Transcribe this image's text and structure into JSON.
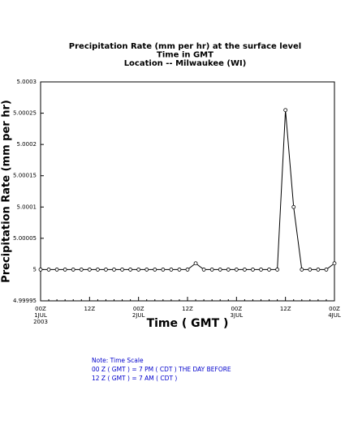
{
  "chart_data": {
    "type": "line",
    "title": [
      "Precipitation Rate (mm per hr) at the surface level",
      "Time in GMT",
      "Location -- Milwaukee (WI)"
    ],
    "x_label": "Time ( GMT )",
    "y_label": "Precipitation Rate (mm per hr)",
    "categories": [
      "00Z",
      null,
      null,
      null,
      null,
      null,
      "12Z",
      null,
      null,
      null,
      null,
      null,
      "00Z",
      null,
      null,
      null,
      null,
      null,
      "12Z",
      null,
      null,
      null,
      null,
      null,
      "00Z",
      null,
      null,
      null,
      null,
      null,
      "12Z",
      null,
      null,
      null,
      null,
      null,
      "00Z"
    ],
    "category_dates": [
      "1JUL",
      null,
      null,
      null,
      null,
      null,
      null,
      null,
      null,
      null,
      null,
      null,
      "2JUL",
      null,
      null,
      null,
      null,
      null,
      null,
      null,
      null,
      null,
      null,
      null,
      "3JUL",
      null,
      null,
      null,
      null,
      null,
      null,
      null,
      null,
      null,
      null,
      null,
      "4JUL"
    ],
    "category_years": [
      "2003",
      null,
      null,
      null,
      null,
      null,
      null,
      null,
      null,
      null,
      null,
      null,
      null,
      null,
      null,
      null,
      null,
      null,
      null,
      null,
      null,
      null,
      null,
      null,
      null,
      null,
      null,
      null,
      null,
      null,
      null,
      null,
      null,
      null,
      null,
      null,
      null
    ],
    "series": [
      {
        "color": "#000000",
        "values": [
          5,
          5,
          5,
          5,
          5,
          5,
          5,
          5,
          5,
          5,
          5,
          5,
          5,
          5,
          5,
          5,
          5,
          5,
          5,
          5.00001,
          5,
          5,
          5,
          5,
          5,
          5,
          5,
          5,
          5,
          5,
          5.000255,
          5.0001,
          5,
          5,
          5,
          5,
          5.00001
        ]
      }
    ],
    "ylim": [
      4.99995,
      5.0003
    ],
    "yticks": [
      4.99995,
      5,
      5.00005,
      5.0001,
      5.00015,
      5.0002,
      5.00025,
      5.0003
    ],
    "notes": [
      "Note: Time Scale",
      "00 Z ( GMT ) = 7 PM ( CDT ) THE DAY BEFORE",
      "12 Z ( GMT ) = 7 AM ( CDT )"
    ]
  }
}
